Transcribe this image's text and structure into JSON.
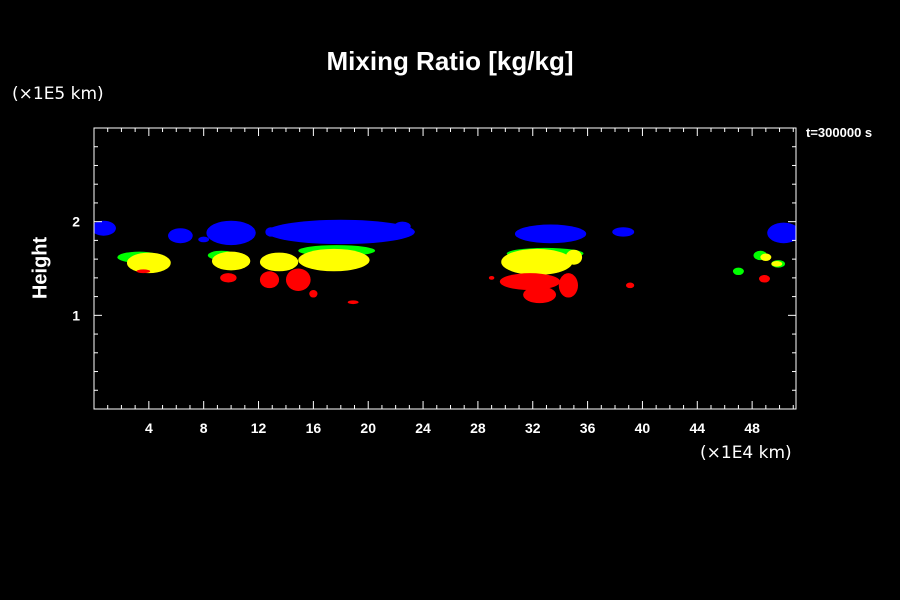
{
  "title": "Mixing Ratio [kg/kg]",
  "y_unit": "(×1E5 km)",
  "x_unit": "(×1E4 km)",
  "time_label": "t=300000 s",
  "ylabel": "Height",
  "chart_data": {
    "type": "heatmap",
    "title": "Mixing Ratio [kg/kg]",
    "xlabel": "",
    "ylabel": "Height",
    "x_unit": "(×1E4 km)",
    "y_unit": "(×1E5 km)",
    "xlim": [
      0,
      51.2
    ],
    "ylim": [
      0,
      3
    ],
    "x_ticks": [
      4,
      8,
      12,
      16,
      20,
      24,
      28,
      32,
      36,
      40,
      44,
      48
    ],
    "y_ticks": [
      1,
      2
    ],
    "x_minor_step": 1,
    "y_minor_step": 0.2,
    "grid": false,
    "colors": {
      "blue": "#0000ff",
      "yellow": "#ffff00",
      "green": "#00ff00",
      "red": "#ff0000"
    },
    "blobs": [
      {
        "color": "blue",
        "cx": 0.7,
        "cy": 1.93,
        "rx": 0.9,
        "ry": 0.08
      },
      {
        "color": "blue",
        "cx": 6.3,
        "cy": 1.85,
        "rx": 0.9,
        "ry": 0.08
      },
      {
        "color": "blue",
        "cx": 8.0,
        "cy": 1.81,
        "rx": 0.4,
        "ry": 0.03
      },
      {
        "color": "blue",
        "cx": 10.0,
        "cy": 1.88,
        "rx": 1.8,
        "ry": 0.13
      },
      {
        "color": "blue",
        "cx": 12.9,
        "cy": 1.89,
        "rx": 0.4,
        "ry": 0.05
      },
      {
        "color": "blue",
        "cx": 18.0,
        "cy": 1.89,
        "rx": 5.4,
        "ry": 0.13
      },
      {
        "color": "blue",
        "cx": 22.5,
        "cy": 1.95,
        "rx": 0.6,
        "ry": 0.05
      },
      {
        "color": "blue",
        "cx": 33.3,
        "cy": 1.87,
        "rx": 2.6,
        "ry": 0.1
      },
      {
        "color": "blue",
        "cx": 38.6,
        "cy": 1.89,
        "rx": 0.8,
        "ry": 0.05
      },
      {
        "color": "blue",
        "cx": 50.3,
        "cy": 1.88,
        "rx": 1.2,
        "ry": 0.11
      },
      {
        "color": "green",
        "cx": 3.3,
        "cy": 1.62,
        "rx": 1.6,
        "ry": 0.06
      },
      {
        "color": "green",
        "cx": 9.3,
        "cy": 1.64,
        "rx": 1.0,
        "ry": 0.05
      },
      {
        "color": "green",
        "cx": 17.7,
        "cy": 1.69,
        "rx": 2.8,
        "ry": 0.06
      },
      {
        "color": "green",
        "cx": 32.9,
        "cy": 1.66,
        "rx": 2.8,
        "ry": 0.06
      },
      {
        "color": "green",
        "cx": 47.0,
        "cy": 1.47,
        "rx": 0.4,
        "ry": 0.04
      },
      {
        "color": "green",
        "cx": 49.9,
        "cy": 1.55,
        "rx": 0.5,
        "ry": 0.04
      },
      {
        "color": "green",
        "cx": 48.6,
        "cy": 1.64,
        "rx": 0.5,
        "ry": 0.05
      },
      {
        "color": "yellow",
        "cx": 4.0,
        "cy": 1.56,
        "rx": 1.6,
        "ry": 0.11
      },
      {
        "color": "yellow",
        "cx": 10.0,
        "cy": 1.58,
        "rx": 1.4,
        "ry": 0.1
      },
      {
        "color": "yellow",
        "cx": 13.5,
        "cy": 1.57,
        "rx": 1.4,
        "ry": 0.1
      },
      {
        "color": "yellow",
        "cx": 17.5,
        "cy": 1.59,
        "rx": 2.6,
        "ry": 0.12
      },
      {
        "color": "yellow",
        "cx": 32.3,
        "cy": 1.57,
        "rx": 2.6,
        "ry": 0.14
      },
      {
        "color": "yellow",
        "cx": 35.0,
        "cy": 1.62,
        "rx": 0.6,
        "ry": 0.08
      },
      {
        "color": "yellow",
        "cx": 49.0,
        "cy": 1.62,
        "rx": 0.4,
        "ry": 0.04
      },
      {
        "color": "yellow",
        "cx": 49.8,
        "cy": 1.55,
        "rx": 0.4,
        "ry": 0.03
      },
      {
        "color": "red",
        "cx": 3.6,
        "cy": 1.47,
        "rx": 0.5,
        "ry": 0.02
      },
      {
        "color": "red",
        "cx": 9.8,
        "cy": 1.4,
        "rx": 0.6,
        "ry": 0.05
      },
      {
        "color": "red",
        "cx": 12.8,
        "cy": 1.38,
        "rx": 0.7,
        "ry": 0.09
      },
      {
        "color": "red",
        "cx": 14.9,
        "cy": 1.38,
        "rx": 0.9,
        "ry": 0.12
      },
      {
        "color": "red",
        "cx": 16.0,
        "cy": 1.23,
        "rx": 0.3,
        "ry": 0.04
      },
      {
        "color": "red",
        "cx": 18.9,
        "cy": 1.14,
        "rx": 0.4,
        "ry": 0.02
      },
      {
        "color": "red",
        "cx": 29.0,
        "cy": 1.4,
        "rx": 0.2,
        "ry": 0.02
      },
      {
        "color": "red",
        "cx": 31.8,
        "cy": 1.36,
        "rx": 2.2,
        "ry": 0.09
      },
      {
        "color": "red",
        "cx": 32.5,
        "cy": 1.22,
        "rx": 1.2,
        "ry": 0.09
      },
      {
        "color": "red",
        "cx": 34.6,
        "cy": 1.32,
        "rx": 0.7,
        "ry": 0.13
      },
      {
        "color": "red",
        "cx": 39.1,
        "cy": 1.32,
        "rx": 0.3,
        "ry": 0.03
      },
      {
        "color": "red",
        "cx": 48.9,
        "cy": 1.39,
        "rx": 0.4,
        "ry": 0.04
      }
    ]
  }
}
